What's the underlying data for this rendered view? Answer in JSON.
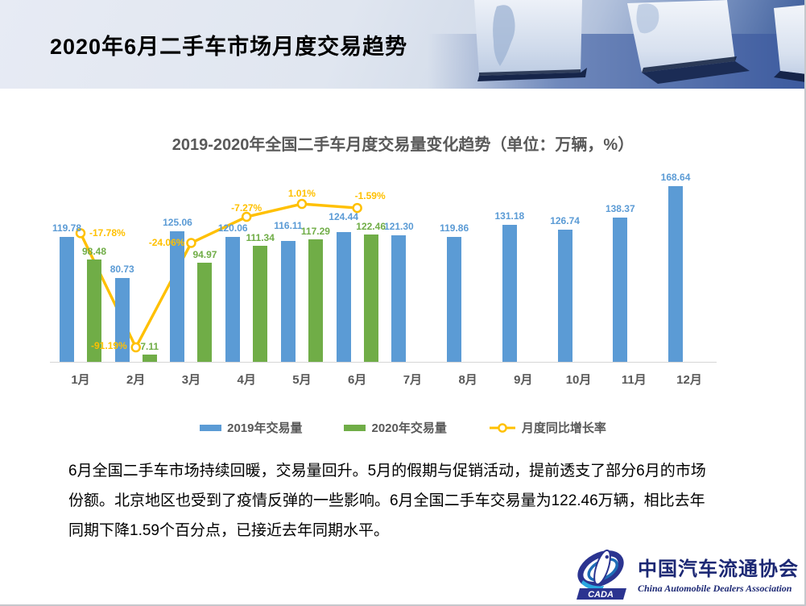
{
  "header": {
    "title": "2020年6月二手车市场月度交易趋势"
  },
  "chart_data": {
    "type": "combo",
    "title": "2019-2020年全国二手车月度交易量变化趋势（单位：万辆，%）",
    "categories": [
      "1月",
      "2月",
      "3月",
      "4月",
      "5月",
      "6月",
      "7月",
      "8月",
      "9月",
      "10月",
      "11月",
      "12月"
    ],
    "series": [
      {
        "name": "2019年交易量",
        "type": "bar",
        "color": "#5B9BD5",
        "values": [
          119.78,
          80.73,
          125.06,
          120.06,
          116.11,
          124.44,
          121.3,
          119.86,
          131.18,
          126.74,
          138.37,
          168.64
        ]
      },
      {
        "name": "2020年交易量",
        "type": "bar",
        "color": "#70AD47",
        "values": [
          98.48,
          7.11,
          94.97,
          111.34,
          117.29,
          122.46
        ]
      },
      {
        "name": "月度同比增长率",
        "type": "line",
        "color": "#FFC000",
        "values": [
          -17.78,
          -91.19,
          -24.06,
          -7.27,
          1.01,
          -1.59
        ],
        "point_labels": [
          "-17.78%",
          "-91.19%",
          "-24.06%",
          "-7.27%",
          "1.01%",
          "-1.59%"
        ]
      }
    ],
    "unit": "万辆，%",
    "y_axis_visible": false,
    "gridlines": false,
    "legend_position": "bottom"
  },
  "summary": {
    "line1": "6月全国二手车市场持续回暖，交易量回升。5月的假期与促销活动，提前透支了部分6月的市场",
    "line2": "份额。北京地区也受到了疫情反弹的一些影响。6月全国二手车交易量为122.46万辆，相比去年",
    "line3": "同期下降1.59个百分点，已接近去年同期水平。"
  },
  "footer": {
    "org_cn": "中国汽车流通协会",
    "org_en": "China Automobile Dealers Association",
    "logo_abbr": "CADA"
  }
}
